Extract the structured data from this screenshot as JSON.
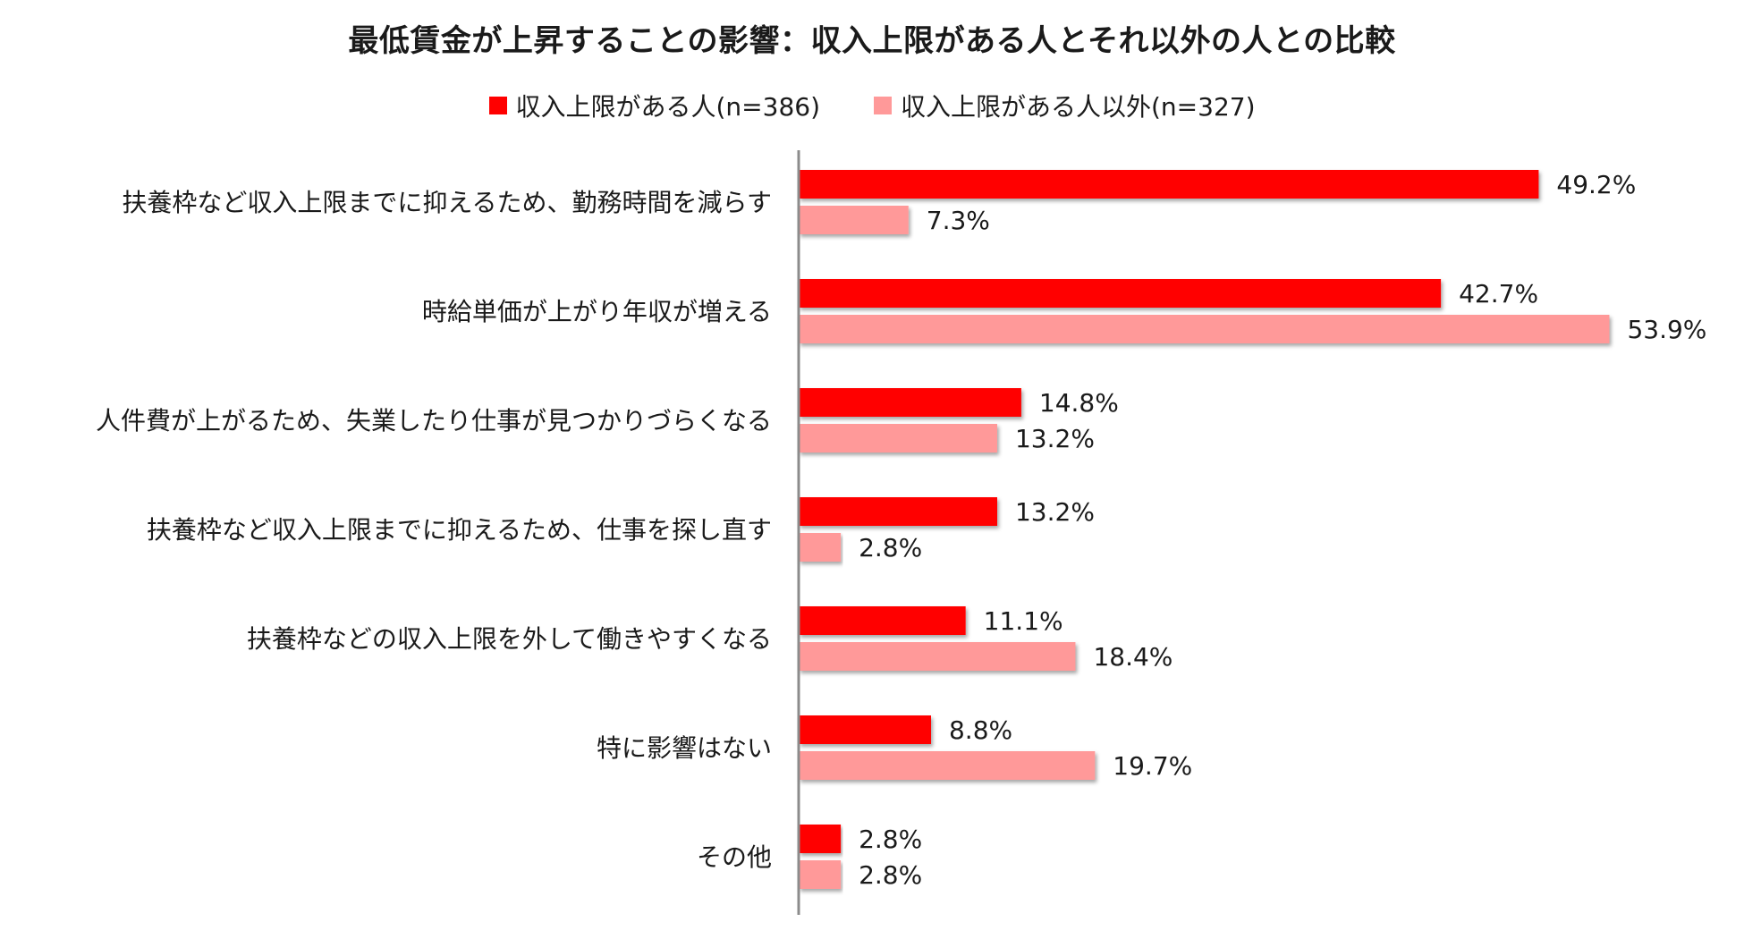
{
  "chart_data": {
    "type": "bar",
    "orientation": "horizontal",
    "title": "最低賃金が上昇することの影響：収入上限がある人とそれ以外の人との比較",
    "categories": [
      "扶養枠など収入上限までに抑えるため、勤務時間を減らす",
      "時給単価が上がり年収が増える",
      "人件費が上がるため、失業したり仕事が見つかりづらくなる",
      "扶養枠など収入上限までに抑えるため、仕事を探し直す",
      "扶養枠などの収入上限を外して働きやすくなる",
      "特に影響はない",
      "その他"
    ],
    "series": [
      {
        "name": "収入上限がある人(n=386)",
        "color": "#ff0000",
        "values": [
          49.2,
          42.7,
          14.8,
          13.2,
          11.1,
          8.8,
          2.8
        ],
        "labels": [
          "49.2%",
          "42.7%",
          "14.8%",
          "13.2%",
          "11.1%",
          "8.8%",
          "2.8%"
        ]
      },
      {
        "name": "収入上限がある人以外(n=327)",
        "color": "#ff9999",
        "values": [
          7.3,
          53.9,
          13.2,
          2.8,
          18.4,
          19.7,
          2.8
        ],
        "labels": [
          "7.3%",
          "53.9%",
          "13.2%",
          "2.8%",
          "18.4%",
          "19.7%",
          "2.8%"
        ]
      }
    ],
    "xlim": [
      0,
      60
    ],
    "unit": "%",
    "grid": false,
    "legend_position": "top-center"
  }
}
